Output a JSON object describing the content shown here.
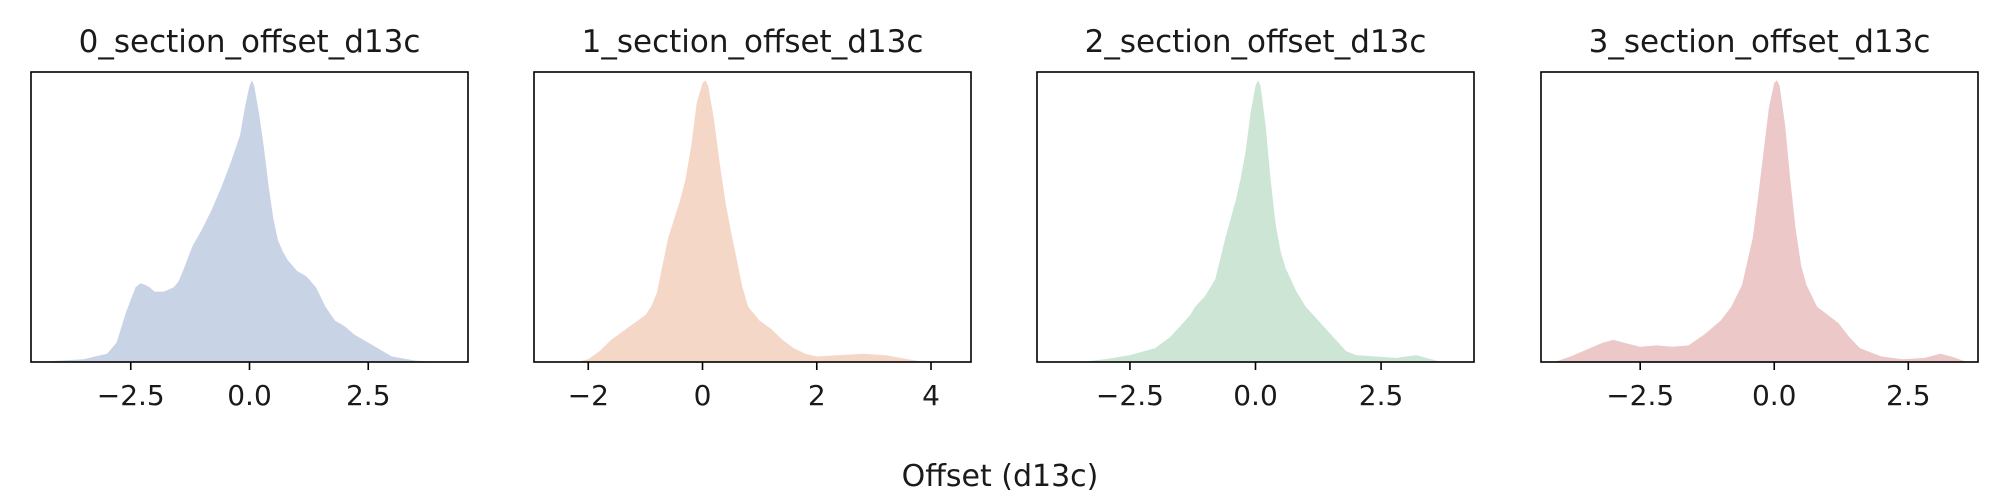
{
  "figure": {
    "xlabel": "Offset (d13c)"
  },
  "chart_data": [
    {
      "type": "area",
      "title": "0_section_offset_d13c",
      "color": "#c8d4e6",
      "xlim": [
        -4.6,
        4.6
      ],
      "ylim": [
        0,
        1.05
      ],
      "xticks": [
        -2.5,
        0.0,
        2.5
      ],
      "xtick_labels": [
        "−2.5",
        "0.0",
        "2.5"
      ],
      "yticks_visible": false,
      "x": [
        -4.4,
        -4.0,
        -3.5,
        -3.0,
        -2.8,
        -2.6,
        -2.4,
        -2.3,
        -2.2,
        -2.1,
        -2.0,
        -1.8,
        -1.6,
        -1.5,
        -1.4,
        -1.2,
        -1.0,
        -0.8,
        -0.6,
        -0.4,
        -0.2,
        -0.1,
        0.0,
        0.05,
        0.1,
        0.2,
        0.3,
        0.4,
        0.5,
        0.6,
        0.7,
        0.8,
        1.0,
        1.2,
        1.4,
        1.6,
        1.8,
        2.0,
        2.2,
        2.4,
        2.6,
        2.8,
        3.0,
        3.5,
        4.0
      ],
      "y": [
        0.0,
        0.005,
        0.01,
        0.03,
        0.07,
        0.18,
        0.27,
        0.285,
        0.28,
        0.27,
        0.255,
        0.255,
        0.27,
        0.29,
        0.33,
        0.42,
        0.48,
        0.55,
        0.63,
        0.72,
        0.82,
        0.92,
        1.0,
        1.02,
        1.0,
        0.9,
        0.78,
        0.64,
        0.52,
        0.44,
        0.4,
        0.37,
        0.33,
        0.31,
        0.27,
        0.2,
        0.15,
        0.13,
        0.1,
        0.08,
        0.06,
        0.04,
        0.02,
        0.005,
        0.0
      ]
    },
    {
      "type": "area",
      "title": "1_section_offset_d13c",
      "color": "#f5d7c8",
      "xlim": [
        -2.95,
        4.7
      ],
      "ylim": [
        0,
        1.05
      ],
      "xticks": [
        -2,
        0,
        2,
        4
      ],
      "xtick_labels": [
        "−2",
        "0",
        "2",
        "4"
      ],
      "yticks_visible": false,
      "x": [
        -2.2,
        -2.0,
        -1.8,
        -1.6,
        -1.4,
        -1.2,
        -1.0,
        -0.9,
        -0.8,
        -0.6,
        -0.4,
        -0.3,
        -0.2,
        -0.1,
        0.0,
        0.05,
        0.1,
        0.2,
        0.3,
        0.4,
        0.5,
        0.6,
        0.7,
        0.8,
        1.0,
        1.2,
        1.4,
        1.6,
        1.8,
        2.0,
        2.4,
        2.8,
        3.2,
        3.6,
        3.9
      ],
      "y": [
        0.0,
        0.01,
        0.04,
        0.08,
        0.11,
        0.14,
        0.17,
        0.2,
        0.25,
        0.45,
        0.58,
        0.66,
        0.78,
        0.94,
        1.01,
        1.02,
        1.0,
        0.88,
        0.72,
        0.58,
        0.47,
        0.37,
        0.27,
        0.2,
        0.15,
        0.12,
        0.08,
        0.05,
        0.03,
        0.02,
        0.025,
        0.03,
        0.025,
        0.01,
        0.0
      ]
    },
    {
      "type": "area",
      "title": "2_section_offset_d13c",
      "color": "#cce5d4",
      "xlim": [
        -4.35,
        4.35
      ],
      "ylim": [
        0,
        1.05
      ],
      "xticks": [
        -2.5,
        0.0,
        2.5
      ],
      "xtick_labels": [
        "−2.5",
        "0.0",
        "2.5"
      ],
      "yticks_visible": false,
      "x": [
        -3.5,
        -3.0,
        -2.5,
        -2.0,
        -1.7,
        -1.5,
        -1.3,
        -1.2,
        -1.0,
        -0.8,
        -0.6,
        -0.4,
        -0.3,
        -0.2,
        -0.1,
        0.0,
        0.05,
        0.1,
        0.2,
        0.3,
        0.4,
        0.5,
        0.6,
        0.7,
        0.8,
        1.0,
        1.2,
        1.4,
        1.6,
        1.8,
        2.0,
        2.4,
        2.8,
        3.0,
        3.2,
        3.4,
        3.7
      ],
      "y": [
        0.0,
        0.01,
        0.025,
        0.05,
        0.09,
        0.13,
        0.17,
        0.2,
        0.24,
        0.3,
        0.45,
        0.58,
        0.66,
        0.76,
        0.9,
        1.0,
        1.02,
        1.0,
        0.86,
        0.66,
        0.5,
        0.4,
        0.34,
        0.3,
        0.26,
        0.2,
        0.16,
        0.12,
        0.08,
        0.04,
        0.025,
        0.02,
        0.015,
        0.02,
        0.025,
        0.015,
        0.0
      ]
    },
    {
      "type": "area",
      "title": "3_section_offset_d13c",
      "color": "#ecc8c8",
      "xlim": [
        -4.35,
        3.8
      ],
      "ylim": [
        0,
        1.05
      ],
      "xticks": [
        -2.5,
        0.0,
        2.5
      ],
      "xtick_labels": [
        "−2.5",
        "0.0",
        "2.5"
      ],
      "yticks_visible": false,
      "x": [
        -4.1,
        -3.8,
        -3.5,
        -3.2,
        -3.0,
        -2.8,
        -2.5,
        -2.2,
        -1.9,
        -1.6,
        -1.3,
        -1.0,
        -0.8,
        -0.6,
        -0.4,
        -0.3,
        -0.2,
        -0.1,
        0.0,
        0.05,
        0.1,
        0.2,
        0.3,
        0.4,
        0.5,
        0.6,
        0.8,
        1.0,
        1.2,
        1.4,
        1.6,
        2.0,
        2.4,
        2.8,
        3.1,
        3.3,
        3.6
      ],
      "y": [
        0.0,
        0.02,
        0.045,
        0.07,
        0.08,
        0.07,
        0.055,
        0.06,
        0.055,
        0.06,
        0.1,
        0.15,
        0.2,
        0.28,
        0.45,
        0.6,
        0.76,
        0.92,
        1.01,
        1.02,
        1.0,
        0.86,
        0.66,
        0.48,
        0.35,
        0.28,
        0.2,
        0.17,
        0.14,
        0.09,
        0.05,
        0.02,
        0.01,
        0.015,
        0.03,
        0.02,
        0.0
      ]
    }
  ]
}
